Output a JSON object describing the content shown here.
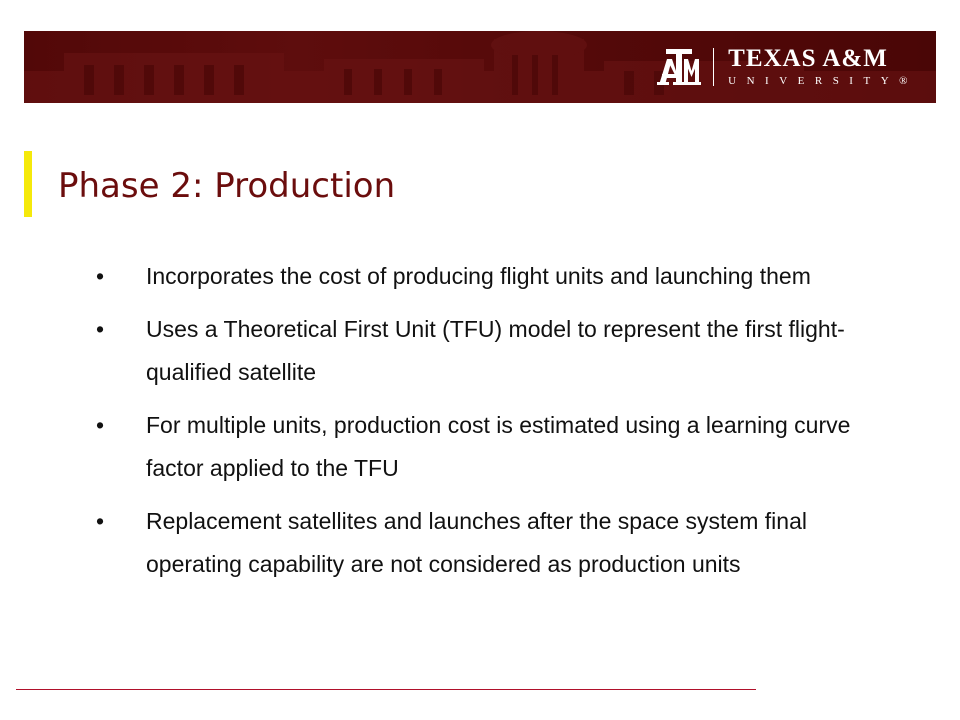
{
  "header": {
    "logo_mark_text": "ATM",
    "logo_wordmark_top": "TEXAS A&M",
    "logo_wordmark_bottom": "UNIVERSITY®",
    "banner_color": "#5a0a0a"
  },
  "slide": {
    "title": "Phase 2: Production",
    "title_color": "#6b0d0d",
    "accent_color": "#f5e90b",
    "bullet_symbol": "•",
    "bullets": [
      "Incorporates the cost of producing flight units and launching them",
      "Uses a Theoretical First Unit (TFU) model to represent the first flight-qualified satellite",
      "For multiple units, production cost is estimated using a learning curve factor applied to the TFU",
      "Replacement satellites and launches after the space system final operating capability are not considered as production units"
    ]
  },
  "footer": {
    "line_color": "#b0112b"
  }
}
